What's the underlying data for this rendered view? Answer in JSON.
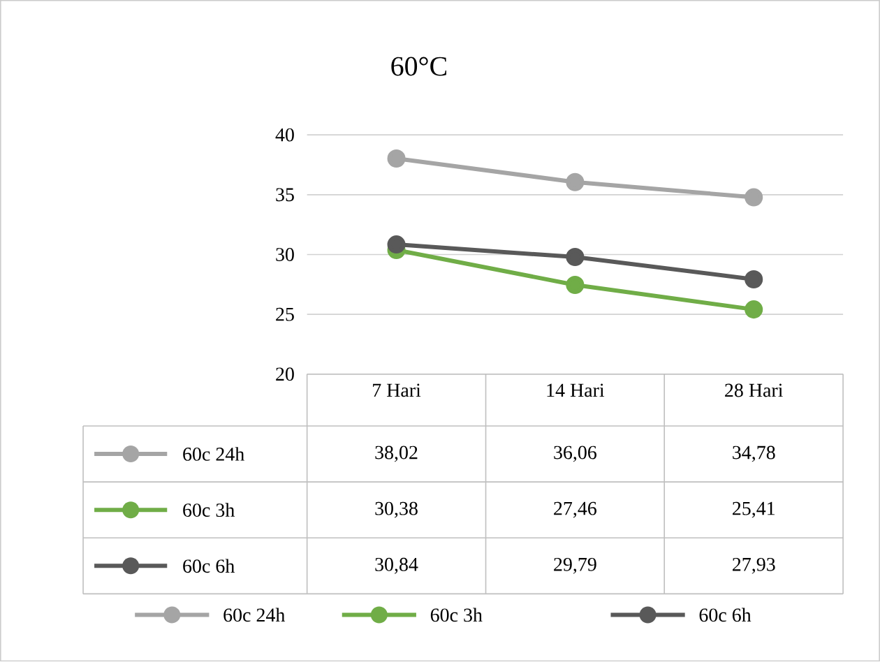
{
  "chart_data": {
    "type": "line",
    "title": "60°C",
    "categories": [
      "7 Hari",
      "14 Hari",
      "28 Hari"
    ],
    "series": [
      {
        "name": "60c 24h",
        "color": "#a5a5a5",
        "values": [
          38.02,
          36.06,
          34.78
        ],
        "value_labels": [
          "38,02",
          "36,06",
          "34,78"
        ]
      },
      {
        "name": "60c 3h",
        "color": "#70ad47",
        "values": [
          30.38,
          27.46,
          25.41
        ],
        "value_labels": [
          "30,38",
          "27,46",
          "25,41"
        ]
      },
      {
        "name": "60c 6h",
        "color": "#595959",
        "values": [
          30.84,
          29.79,
          27.93
        ],
        "value_labels": [
          "30,84",
          "29,79",
          "27,93"
        ]
      }
    ],
    "ylim": [
      20,
      40
    ],
    "yticks": [
      20,
      25,
      30,
      35,
      40
    ],
    "grid": "y",
    "legend": "bottom",
    "marker": "circle",
    "line_style": "solid"
  }
}
